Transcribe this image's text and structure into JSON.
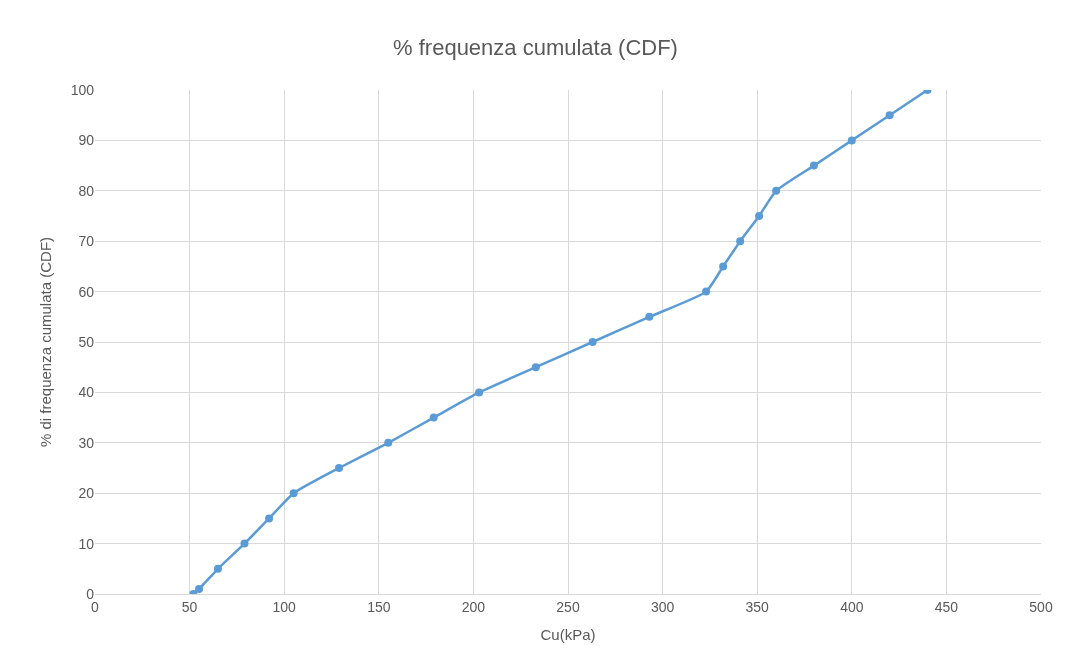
{
  "chart_data": {
    "type": "line",
    "title": "% frequenza cumulata (CDF)",
    "xlabel": "Cu(kPa)",
    "ylabel": "% di frequenza cumulata (CDF)",
    "x": [
      52,
      55,
      65,
      79,
      92,
      105,
      129,
      155,
      179,
      203,
      233,
      263,
      293,
      323,
      332,
      341,
      351,
      360,
      380,
      400,
      420,
      440
    ],
    "series": [
      {
        "color": "#5b9bd5",
        "values": [
          0,
          1,
          5,
          10,
          15,
          20,
          25,
          30,
          35,
          40,
          45,
          50,
          55,
          60,
          65,
          70,
          75,
          80,
          85,
          90,
          95,
          100
        ]
      }
    ],
    "xlim": [
      0,
      500
    ],
    "xticks": [
      0,
      50,
      100,
      150,
      200,
      250,
      300,
      350,
      400,
      450,
      500
    ],
    "ylim": [
      0,
      100
    ],
    "yticks": [
      0,
      10,
      20,
      30,
      40,
      50,
      60,
      70,
      80,
      90,
      100
    ],
    "grid": true,
    "marker": "circle",
    "line_style": "solid"
  }
}
